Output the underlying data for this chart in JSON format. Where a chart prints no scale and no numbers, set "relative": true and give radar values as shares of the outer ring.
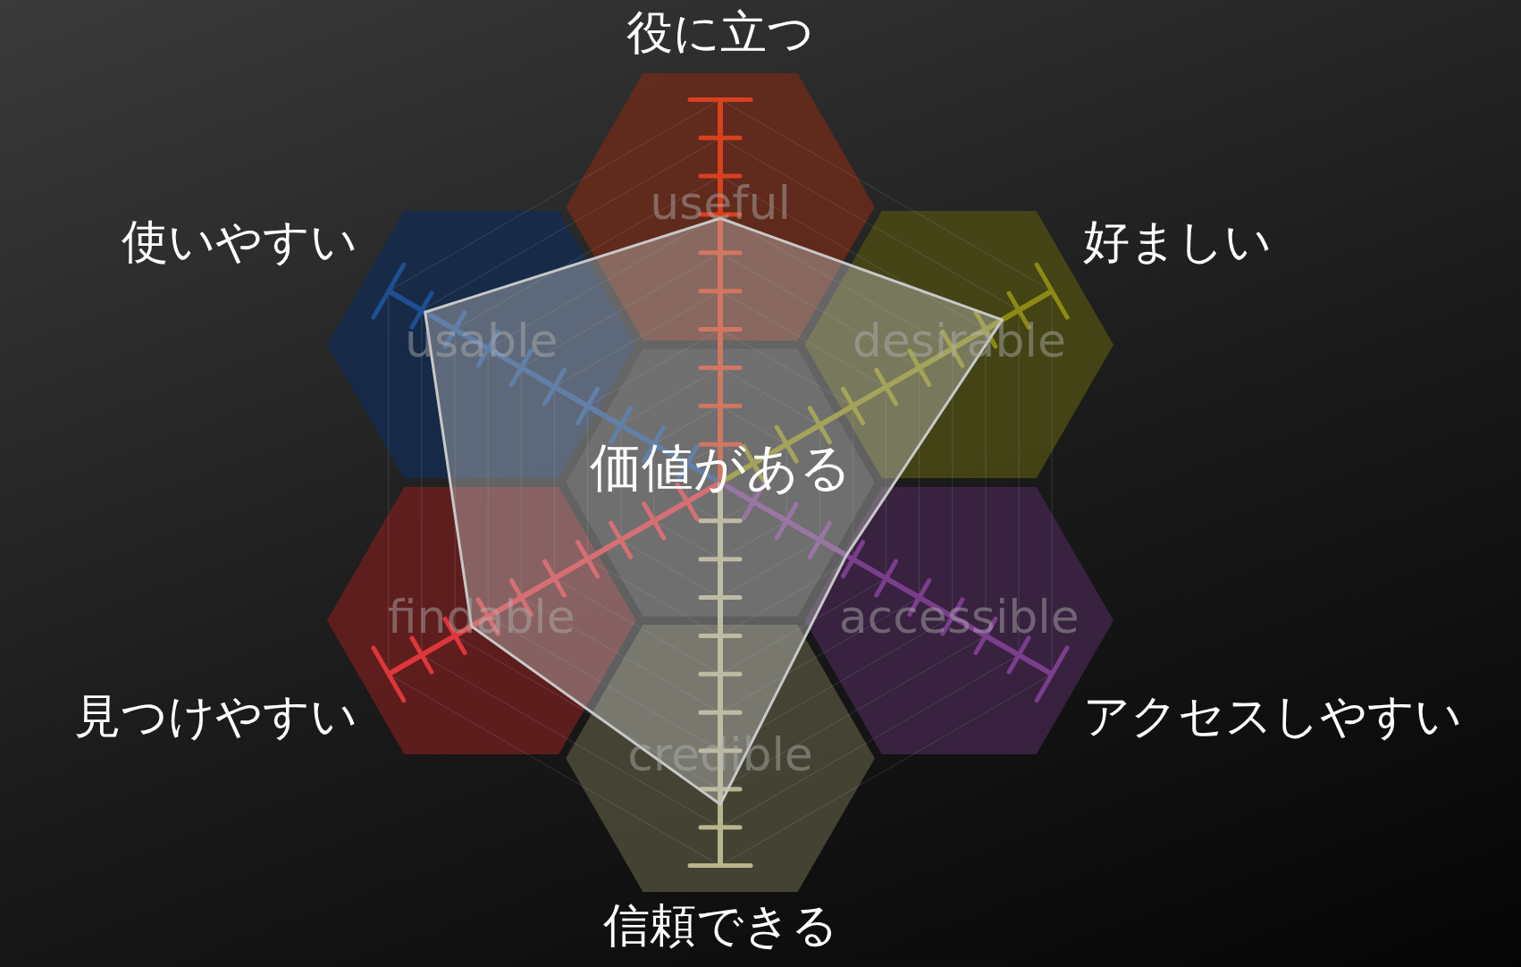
{
  "chart_data": {
    "type": "radar",
    "relative": true,
    "categories": [
      "役に立つ",
      "好ましい",
      "アクセスしやすい",
      "信頼できる",
      "見つけやすい",
      "使いやすい"
    ],
    "series": [
      {
        "color": "#c8c8c8",
        "values": [
          0.69,
          0.85,
          0.38,
          0.84,
          0.75,
          0.89
        ]
      }
    ],
    "annotations": [
      "価値がある",
      "useful",
      "desirable",
      "accessible",
      "credible",
      "findable",
      "usable"
    ],
    "legend": false,
    "grid": true
  }
}
